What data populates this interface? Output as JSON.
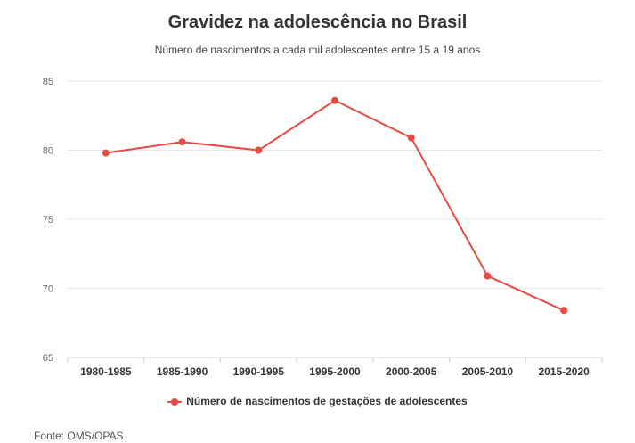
{
  "chart_data": {
    "type": "line",
    "title": "Gravidez na adolescência no Brasil",
    "subtitle": "Número de nascimentos a cada mil adolescentes entre 15 a 19 anos",
    "categories": [
      "1980-1985",
      "1985-1990",
      "1990-1995",
      "1995-2000",
      "2000-2005",
      "2005-2010",
      "2015-2020"
    ],
    "series": [
      {
        "name": "Número de nascimentos de gestações de adolescentes",
        "values": [
          79.8,
          80.6,
          80.0,
          83.6,
          80.9,
          70.9,
          68.4
        ],
        "color": "#e84a43"
      }
    ],
    "ylim": [
      65,
      85
    ],
    "yticks": [
      65,
      70,
      75,
      80,
      85
    ],
    "grid": true,
    "legend": "bottom-center",
    "xlabel": "",
    "ylabel": ""
  },
  "source": "Fonte: OMS/OPAS"
}
